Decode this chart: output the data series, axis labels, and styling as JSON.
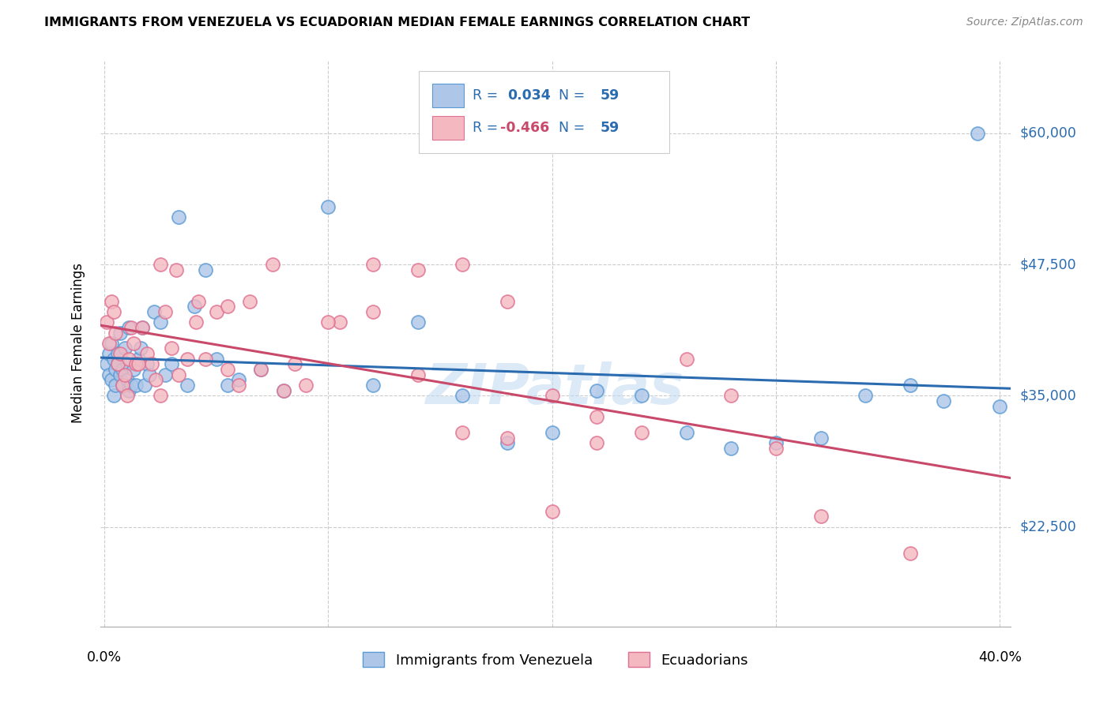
{
  "title": "IMMIGRANTS FROM VENEZUELA VS ECUADORIAN MEDIAN FEMALE EARNINGS CORRELATION CHART",
  "source": "Source: ZipAtlas.com",
  "ylabel": "Median Female Earnings",
  "ytick_values": [
    22500,
    35000,
    47500,
    60000
  ],
  "ytick_labels": [
    "$22,500",
    "$35,000",
    "$47,500",
    "$60,000"
  ],
  "ymin": 13000,
  "ymax": 67000,
  "xmin": -0.002,
  "xmax": 0.405,
  "xtick_values": [
    0.0,
    0.1,
    0.2,
    0.3,
    0.4
  ],
  "blue_R": "0.034",
  "pink_R": "-0.466",
  "N": "59",
  "blue_scatter_color": "#aec6e8",
  "blue_edge_color": "#5b9bd5",
  "pink_scatter_color": "#f4b8c1",
  "pink_edge_color": "#e07090",
  "blue_line_color": "#2b6cb0",
  "pink_line_color": "#c8496a",
  "blue_label": "Immigrants from Venezuela",
  "pink_label": "Ecuadorians",
  "watermark": "ZIPatlas",
  "legend_text_color": "#2b6cb0",
  "legend_R_blue": "#2b6cb0",
  "legend_R_pink": "#c8496a",
  "blue_scatter_x": [
    0.001,
    0.002,
    0.002,
    0.003,
    0.003,
    0.004,
    0.004,
    0.005,
    0.005,
    0.006,
    0.006,
    0.007,
    0.007,
    0.008,
    0.008,
    0.009,
    0.01,
    0.01,
    0.011,
    0.011,
    0.012,
    0.013,
    0.014,
    0.015,
    0.016,
    0.017,
    0.018,
    0.019,
    0.02,
    0.022,
    0.025,
    0.027,
    0.03,
    0.033,
    0.037,
    0.04,
    0.045,
    0.05,
    0.055,
    0.06,
    0.07,
    0.08,
    0.1,
    0.12,
    0.14,
    0.16,
    0.18,
    0.2,
    0.22,
    0.24,
    0.26,
    0.28,
    0.3,
    0.32,
    0.34,
    0.36,
    0.375,
    0.39,
    0.4
  ],
  "blue_scatter_y": [
    38000,
    37000,
    39000,
    36500,
    40000,
    35000,
    38500,
    37500,
    36000,
    39000,
    38000,
    37000,
    41000,
    36000,
    37500,
    39500,
    38000,
    36500,
    41500,
    35500,
    36000,
    37500,
    36000,
    38500,
    39500,
    41500,
    36000,
    38000,
    37000,
    43000,
    42000,
    37000,
    38000,
    52000,
    36000,
    43500,
    47000,
    38500,
    36000,
    36500,
    37500,
    35500,
    53000,
    36000,
    42000,
    35000,
    30500,
    31500,
    35500,
    35000,
    31500,
    30000,
    30500,
    31000,
    35000,
    36000,
    34500,
    60000,
    34000
  ],
  "pink_scatter_x": [
    0.001,
    0.002,
    0.003,
    0.004,
    0.005,
    0.006,
    0.007,
    0.008,
    0.009,
    0.01,
    0.011,
    0.012,
    0.013,
    0.014,
    0.015,
    0.017,
    0.019,
    0.021,
    0.023,
    0.025,
    0.027,
    0.03,
    0.033,
    0.037,
    0.041,
    0.045,
    0.05,
    0.055,
    0.06,
    0.07,
    0.08,
    0.09,
    0.105,
    0.12,
    0.14,
    0.16,
    0.18,
    0.2,
    0.22,
    0.24,
    0.26,
    0.28,
    0.3,
    0.32,
    0.025,
    0.032,
    0.042,
    0.055,
    0.065,
    0.075,
    0.085,
    0.1,
    0.12,
    0.14,
    0.16,
    0.18,
    0.2,
    0.22,
    0.36
  ],
  "pink_scatter_y": [
    42000,
    40000,
    44000,
    43000,
    41000,
    38000,
    39000,
    36000,
    37000,
    35000,
    38500,
    41500,
    40000,
    38000,
    38000,
    41500,
    39000,
    38000,
    36500,
    35000,
    43000,
    39500,
    37000,
    38500,
    42000,
    38500,
    43000,
    37500,
    36000,
    37500,
    35500,
    36000,
    42000,
    43000,
    47000,
    47500,
    44000,
    35000,
    30500,
    31500,
    38500,
    35000,
    30000,
    23500,
    47500,
    47000,
    44000,
    43500,
    44000,
    47500,
    38000,
    42000,
    47500,
    37000,
    31500,
    31000,
    24000,
    33000,
    20000
  ]
}
